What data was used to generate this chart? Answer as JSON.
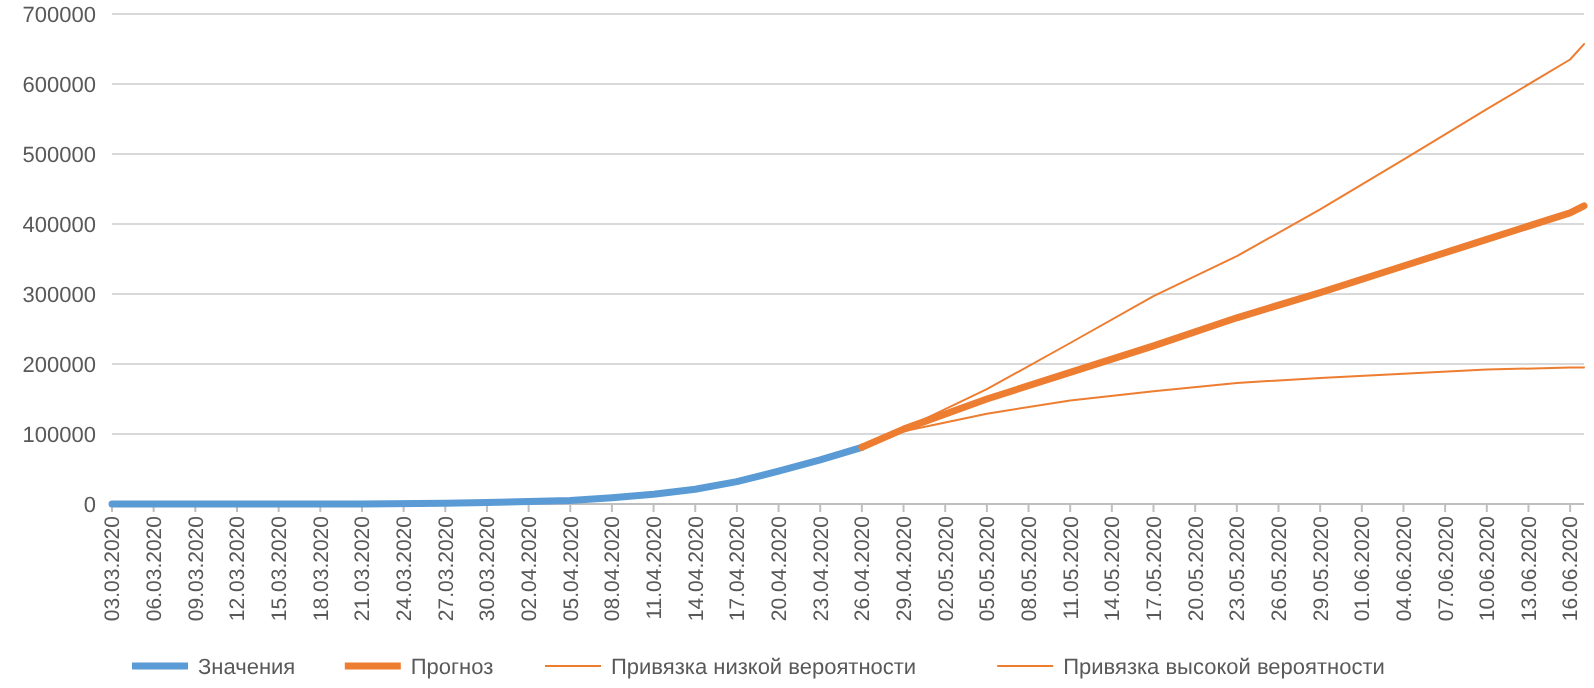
{
  "chart_data": {
    "type": "line",
    "xlim": [
      "2020-03-03",
      "2020-06-17"
    ],
    "xticks": [
      {
        "value": "2020-03-03",
        "label": "03.03.2020"
      },
      {
        "value": "2020-03-06",
        "label": "06.03.2020"
      },
      {
        "value": "2020-03-09",
        "label": "09.03.2020"
      },
      {
        "value": "2020-03-12",
        "label": "12.03.2020"
      },
      {
        "value": "2020-03-15",
        "label": "15.03.2020"
      },
      {
        "value": "2020-03-18",
        "label": "18.03.2020"
      },
      {
        "value": "2020-03-21",
        "label": "21.03.2020"
      },
      {
        "value": "2020-03-24",
        "label": "24.03.2020"
      },
      {
        "value": "2020-03-27",
        "label": "27.03.2020"
      },
      {
        "value": "2020-03-30",
        "label": "30.03.2020"
      },
      {
        "value": "2020-04-02",
        "label": "02.04.2020"
      },
      {
        "value": "2020-04-05",
        "label": "05.04.2020"
      },
      {
        "value": "2020-04-08",
        "label": "08.04.2020"
      },
      {
        "value": "2020-04-11",
        "label": "11.04.2020"
      },
      {
        "value": "2020-04-14",
        "label": "14.04.2020"
      },
      {
        "value": "2020-04-17",
        "label": "17.04.2020"
      },
      {
        "value": "2020-04-20",
        "label": "20.04.2020"
      },
      {
        "value": "2020-04-23",
        "label": "23.04.2020"
      },
      {
        "value": "2020-04-26",
        "label": "26.04.2020"
      },
      {
        "value": "2020-04-29",
        "label": "29.04.2020"
      },
      {
        "value": "2020-05-02",
        "label": "02.05.2020"
      },
      {
        "value": "2020-05-05",
        "label": "05.05.2020"
      },
      {
        "value": "2020-05-08",
        "label": "08.05.2020"
      },
      {
        "value": "2020-05-11",
        "label": "11.05.2020"
      },
      {
        "value": "2020-05-14",
        "label": "14.05.2020"
      },
      {
        "value": "2020-05-17",
        "label": "17.05.2020"
      },
      {
        "value": "2020-05-20",
        "label": "20.05.2020"
      },
      {
        "value": "2020-05-23",
        "label": "23.05.2020"
      },
      {
        "value": "2020-05-26",
        "label": "26.05.2020"
      },
      {
        "value": "2020-05-29",
        "label": "29.05.2020"
      },
      {
        "value": "2020-06-01",
        "label": "01.06.2020"
      },
      {
        "value": "2020-06-04",
        "label": "04.06.2020"
      },
      {
        "value": "2020-06-07",
        "label": "07.06.2020"
      },
      {
        "value": "2020-06-10",
        "label": "10.06.2020"
      },
      {
        "value": "2020-06-13",
        "label": "13.06.2020"
      },
      {
        "value": "2020-06-16",
        "label": "16.06.2020"
      }
    ],
    "ylim": [
      0,
      700000
    ],
    "yticks": [
      0,
      100000,
      200000,
      300000,
      400000,
      500000,
      600000,
      700000
    ],
    "grid": "y",
    "legend": "bottom",
    "marker": "none",
    "series": [
      {
        "name": "Значения",
        "color": "#5b9bd5",
        "x": [
          "2020-03-03",
          "2020-03-09",
          "2020-03-15",
          "2020-03-21",
          "2020-03-27",
          "2020-03-30",
          "2020-04-02",
          "2020-04-05",
          "2020-04-08",
          "2020-04-11",
          "2020-04-14",
          "2020-04-17",
          "2020-04-20",
          "2020-04-23",
          "2020-04-26"
        ],
        "values": [
          0,
          0,
          0,
          0,
          1000,
          2000,
          3500,
          5000,
          9000,
          14000,
          21000,
          32000,
          47000,
          63000,
          81000
        ]
      },
      {
        "name": "Прогноз",
        "color": "#ed7d31",
        "x": [
          "2020-04-26",
          "2020-04-29",
          "2020-05-05",
          "2020-05-11",
          "2020-05-17",
          "2020-05-23",
          "2020-05-29",
          "2020-06-04",
          "2020-06-10",
          "2020-06-16",
          "2020-06-17"
        ],
        "values": [
          81000,
          107000,
          150000,
          188000,
          226000,
          266000,
          302000,
          340000,
          378000,
          416000,
          426000
        ]
      },
      {
        "name": "Привязка низкой вероятности",
        "color": "#ed7d31",
        "x": [
          "2020-04-26",
          "2020-04-29",
          "2020-05-05",
          "2020-05-11",
          "2020-05-17",
          "2020-05-23",
          "2020-05-29",
          "2020-06-04",
          "2020-06-10",
          "2020-06-16",
          "2020-06-17"
        ],
        "values": [
          81000,
          104000,
          129000,
          148000,
          161000,
          173000,
          180000,
          186000,
          192000,
          195000,
          195000
        ]
      },
      {
        "name": "Привязка высокой вероятности",
        "color": "#ed7d31",
        "x": [
          "2020-04-26",
          "2020-04-29",
          "2020-05-05",
          "2020-05-11",
          "2020-05-17",
          "2020-05-23",
          "2020-05-29",
          "2020-06-04",
          "2020-06-10",
          "2020-06-16",
          "2020-06-17"
        ],
        "values": [
          81000,
          107000,
          164000,
          230000,
          297000,
          354000,
          421000,
          492000,
          564000,
          635000,
          657000
        ]
      }
    ]
  }
}
